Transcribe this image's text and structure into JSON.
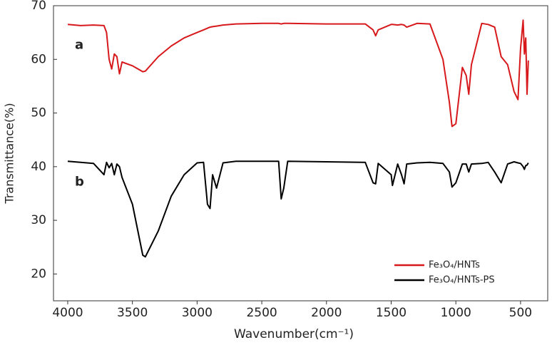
{
  "chart_data": {
    "type": "line",
    "xlabel": "Wavenumber(cm⁻¹)",
    "ylabel": "Transmittance(%)",
    "annotations": [
      "a",
      "b"
    ],
    "xlim": [
      4110,
      290
    ],
    "ylim": [
      15,
      70
    ],
    "xticks": [
      4000,
      3500,
      3000,
      2500,
      2000,
      1500,
      1000,
      500
    ],
    "yticks": [
      20,
      30,
      40,
      50,
      60,
      70
    ],
    "legend": "lower right",
    "grid": false,
    "x": [
      4000,
      3900,
      3800,
      3720,
      3700,
      3680,
      3660,
      3640,
      3620,
      3600,
      3580,
      3500,
      3420,
      3400,
      3300,
      3200,
      3100,
      3000,
      2950,
      2920,
      2900,
      2880,
      2850,
      2800,
      2700,
      2500,
      2370,
      2350,
      2330,
      2300,
      2000,
      1700,
      1640,
      1620,
      1600,
      1500,
      1490,
      1450,
      1420,
      1400,
      1380,
      1300,
      1200,
      1100,
      1050,
      1030,
      1000,
      950,
      920,
      900,
      880,
      800,
      750,
      700,
      650,
      600,
      550,
      520,
      500,
      480,
      470,
      460,
      450,
      440
    ],
    "series": [
      {
        "name": "Fe₃O₄/HNTs",
        "color": "#d7191c",
        "values": [
          66.5,
          66.3,
          66.4,
          66.3,
          65,
          60,
          58.2,
          61,
          60.5,
          57.3,
          59.5,
          58.8,
          57.7,
          57.8,
          60.5,
          62.5,
          64,
          65,
          65.5,
          65.8,
          66,
          66.1,
          66.2,
          66.4,
          66.6,
          66.7,
          66.7,
          66.6,
          66.7,
          66.7,
          66.6,
          66.6,
          65.5,
          64.4,
          65.5,
          66.5,
          66.5,
          66.4,
          66.5,
          66.4,
          66,
          66.7,
          66.6,
          60,
          52,
          47.5,
          48,
          58.5,
          57,
          53.5,
          59,
          66.7,
          66.5,
          66,
          60.5,
          59,
          54,
          52.5,
          62,
          67.3,
          61,
          64,
          53.5,
          59.8
        ]
      },
      {
        "name": "Fe₃O₄/HNTs-PS",
        "color": "#000000",
        "values": [
          41,
          40.8,
          40.6,
          38.5,
          40.8,
          39.8,
          40.6,
          38.5,
          40.5,
          40,
          38,
          33,
          23.5,
          23.2,
          28,
          34.5,
          38.5,
          40.7,
          40.8,
          33,
          32.2,
          38.5,
          36,
          40.7,
          41,
          41,
          41,
          34,
          36,
          41,
          40.9,
          40.8,
          37,
          36.8,
          40.6,
          38.5,
          36.5,
          40.5,
          38.5,
          36.8,
          40.5,
          40.7,
          40.8,
          40.6,
          39,
          36.2,
          37,
          40.5,
          40.5,
          39,
          40.5,
          40.6,
          40.8,
          39,
          37,
          40.5,
          40.9,
          40.7,
          40.6,
          40,
          39.5,
          40.2,
          40.3,
          40.7
        ]
      }
    ]
  }
}
